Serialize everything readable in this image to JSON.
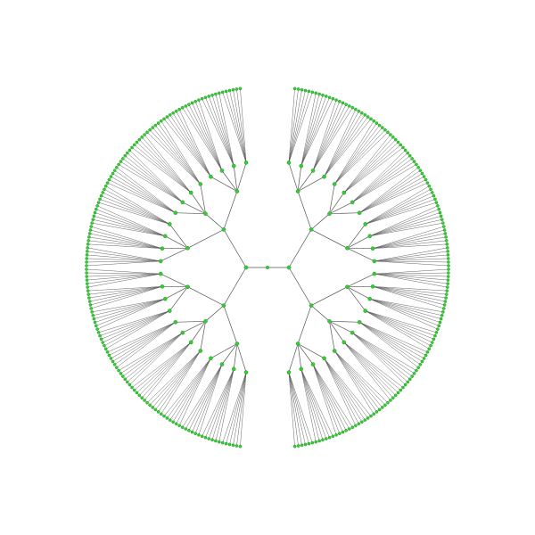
{
  "diagram": {
    "type": "radial-tree",
    "root_children": 2,
    "levels": [
      {
        "depth": 1,
        "branching": 2
      },
      {
        "depth": 2,
        "branching": 3
      },
      {
        "depth": 3,
        "branching": 4
      },
      {
        "depth": 4,
        "branching": 6
      }
    ],
    "colors": {
      "background": "#ffffff",
      "edge": "#555555",
      "node": "#33cc33",
      "node_outline": "#1f8f1f"
    }
  }
}
